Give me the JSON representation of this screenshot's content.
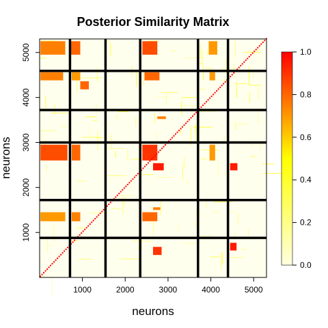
{
  "chart_data": {
    "type": "heatmap",
    "title": "Posterior Similarity Matrix",
    "xlabel": "neurons",
    "ylabel": "neurons",
    "xlim": [
      1,
      5300
    ],
    "ylim": [
      1,
      5300
    ],
    "x_ticks": [
      1000,
      2000,
      3000,
      4000,
      5000
    ],
    "y_ticks": [
      1000,
      2000,
      3000,
      4000,
      5000
    ],
    "cluster_boundaries_x": [
      710,
      1540,
      2350,
      3700,
      4400
    ],
    "cluster_boundaries_y": [
      880,
      1720,
      3000,
      3720,
      4590
    ],
    "colorbar": {
      "min": 0.0,
      "max": 1.0,
      "ticks": [
        0.0,
        0.2,
        0.4,
        0.6,
        0.8,
        1.0
      ],
      "colors": [
        "#ffffe0",
        "#ffff00",
        "#ff0000"
      ]
    },
    "diagonal_value": 1.0,
    "high_similarity_blocks": [
      {
        "x": [
          20,
          600
        ],
        "y": [
          4950,
          5250
        ],
        "value": 0.75
      },
      {
        "x": [
          700,
          950
        ],
        "y": [
          4950,
          5250
        ],
        "value": 0.8
      },
      {
        "x": [
          2400,
          2750
        ],
        "y": [
          4950,
          5250
        ],
        "value": 0.85
      },
      {
        "x": [
          3950,
          4150
        ],
        "y": [
          4950,
          5250
        ],
        "value": 0.7
      },
      {
        "x": [
          20,
          550
        ],
        "y": [
          4380,
          4560
        ],
        "value": 0.75
      },
      {
        "x": [
          750,
          950
        ],
        "y": [
          4380,
          4560
        ],
        "value": 0.7
      },
      {
        "x": [
          950,
          1150
        ],
        "y": [
          4180,
          4360
        ],
        "value": 0.8
      },
      {
        "x": [
          2450,
          2800
        ],
        "y": [
          4380,
          4560
        ],
        "value": 0.8
      },
      {
        "x": [
          3970,
          4100
        ],
        "y": [
          4380,
          4560
        ],
        "value": 0.7
      },
      {
        "x": [
          20,
          650
        ],
        "y": [
          2600,
          2950
        ],
        "value": 0.85
      },
      {
        "x": [
          750,
          950
        ],
        "y": [
          2600,
          2950
        ],
        "value": 0.8
      },
      {
        "x": [
          2400,
          2750
        ],
        "y": [
          2600,
          2950
        ],
        "value": 0.9
      },
      {
        "x": [
          2650,
          2900
        ],
        "y": [
          2380,
          2540
        ],
        "value": 0.95
      },
      {
        "x": [
          3970,
          4100
        ],
        "y": [
          2600,
          2950
        ],
        "value": 0.7
      },
      {
        "x": [
          4450,
          4620
        ],
        "y": [
          2380,
          2540
        ],
        "value": 0.95
      },
      {
        "x": [
          20,
          600
        ],
        "y": [
          1250,
          1450
        ],
        "value": 0.7
      },
      {
        "x": [
          750,
          950
        ],
        "y": [
          1250,
          1450
        ],
        "value": 0.75
      },
      {
        "x": [
          2400,
          2750
        ],
        "y": [
          1250,
          1450
        ],
        "value": 0.8
      },
      {
        "x": [
          2650,
          2850
        ],
        "y": [
          500,
          680
        ],
        "value": 0.9
      },
      {
        "x": [
          4450,
          4600
        ],
        "y": [
          600,
          770
        ],
        "value": 0.95
      },
      {
        "x": [
          2650,
          2820
        ],
        "y": [
          1500,
          1560
        ],
        "value": 0.75
      },
      {
        "x": [
          2750,
          2950
        ],
        "y": [
          3520,
          3580
        ],
        "value": 0.75
      }
    ]
  }
}
